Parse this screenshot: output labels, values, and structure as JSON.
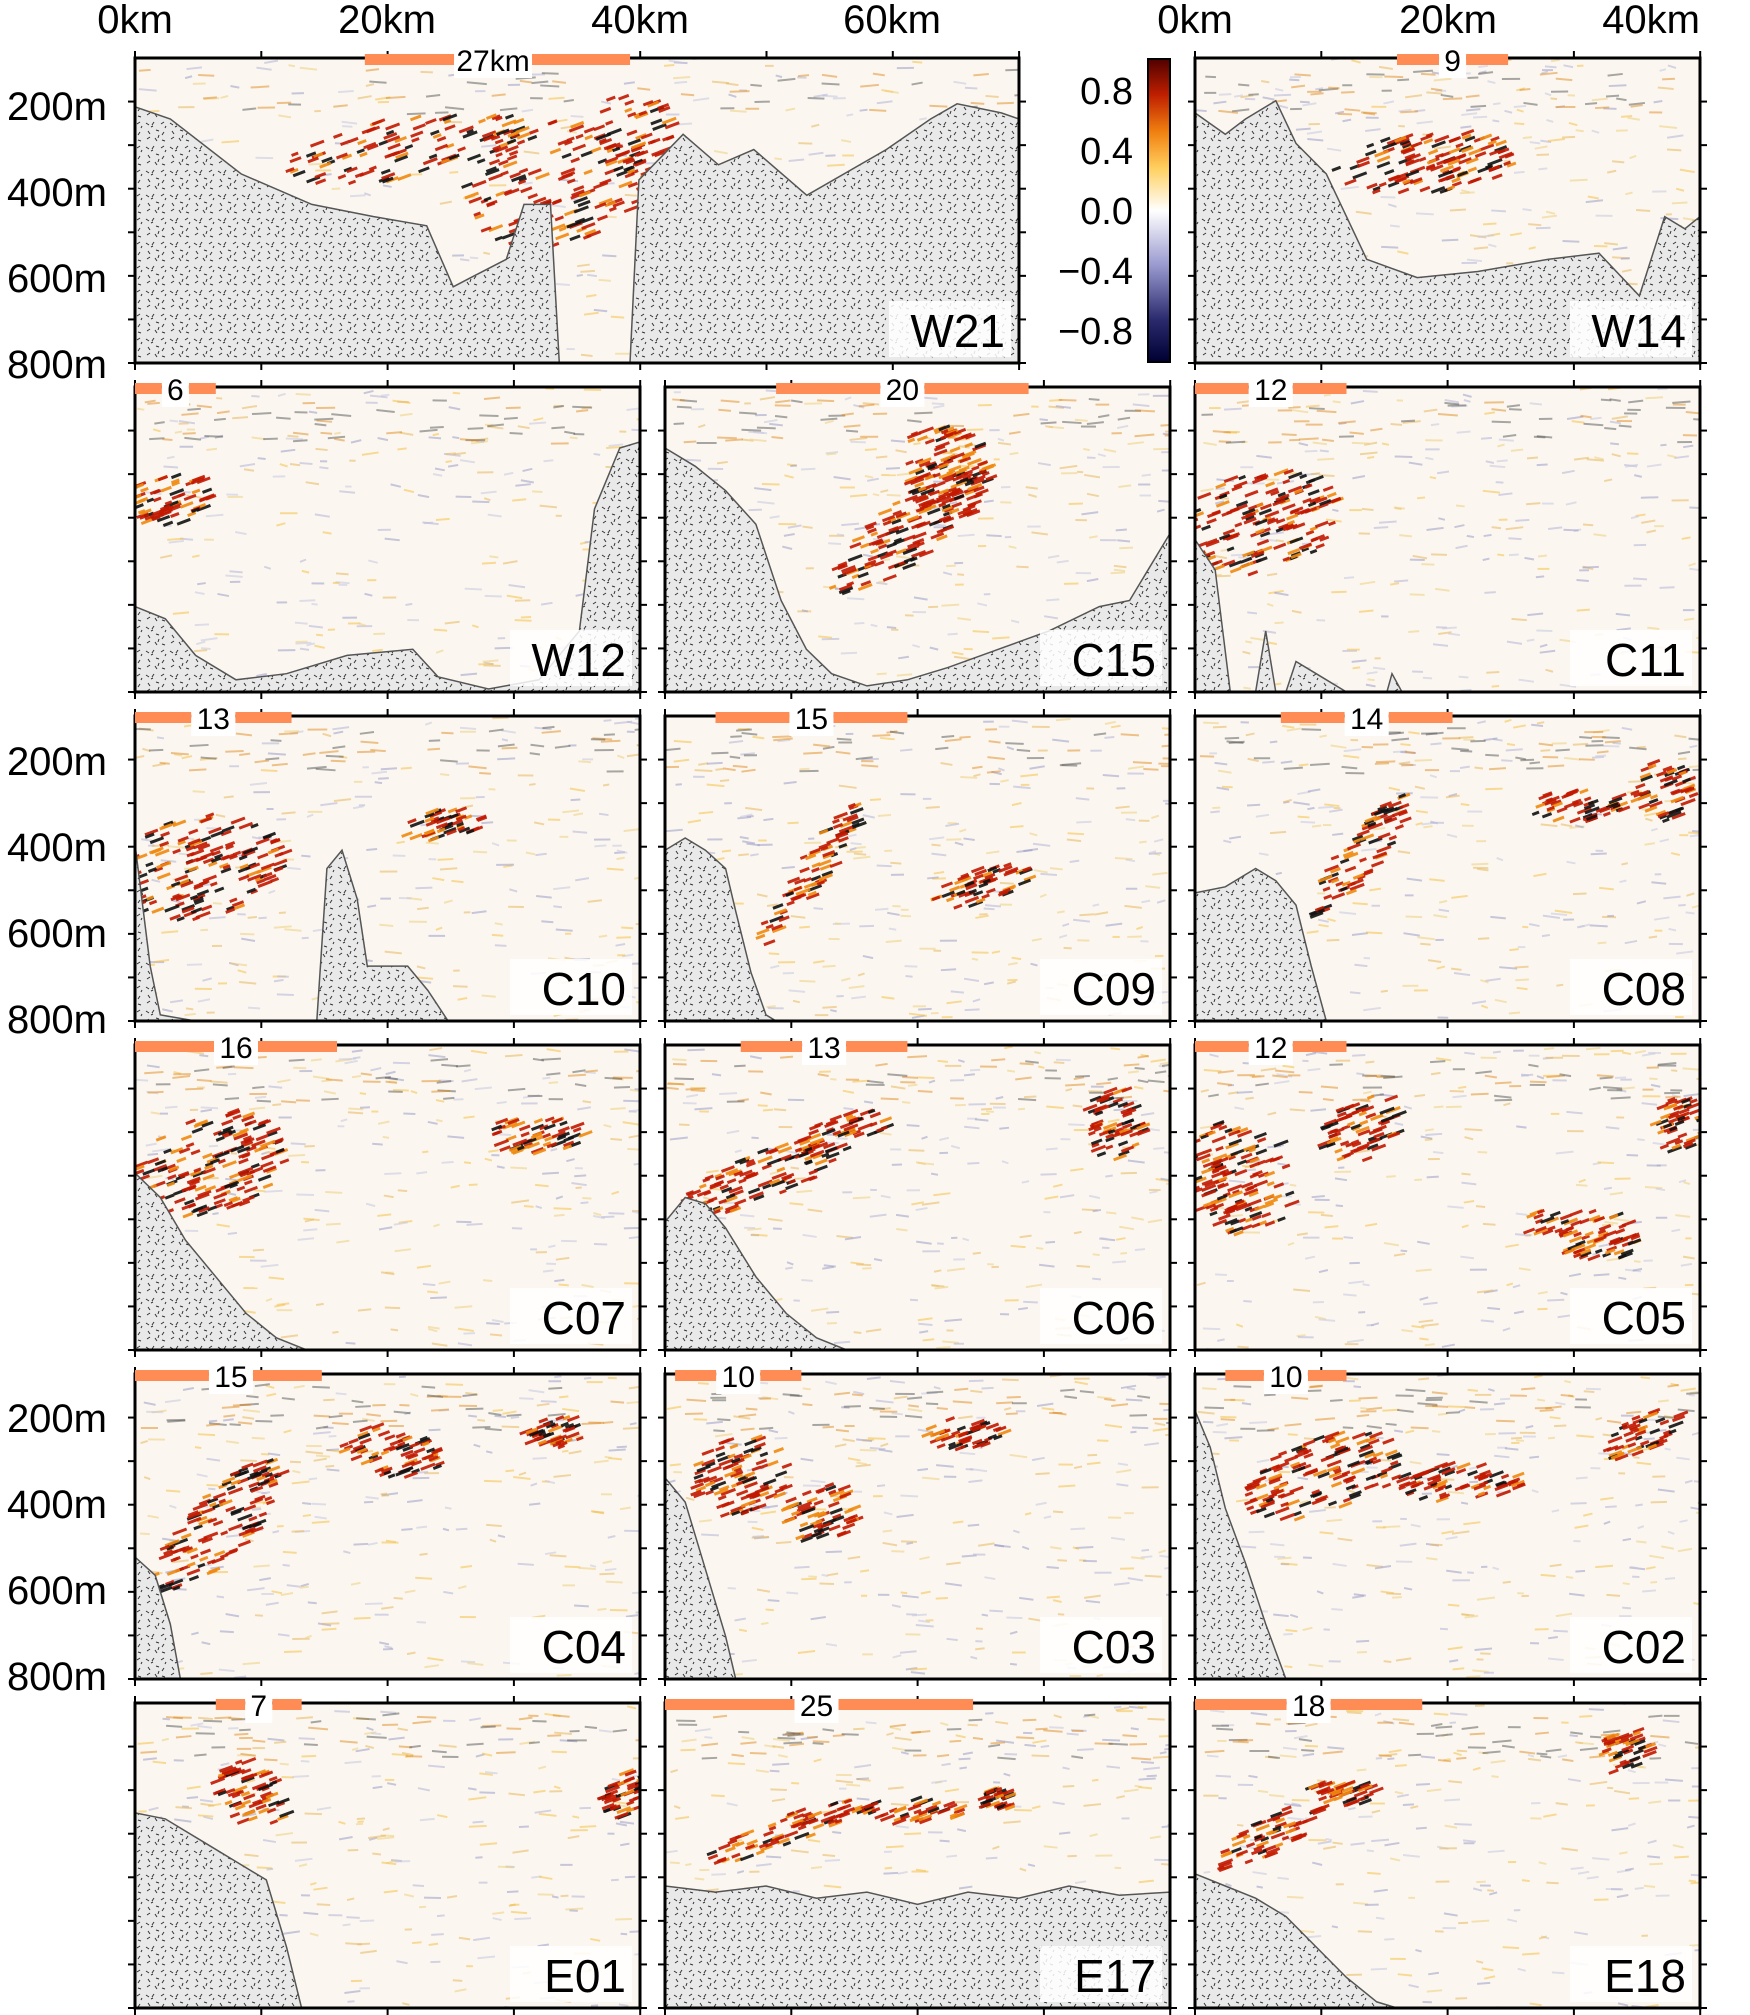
{
  "figure": {
    "top_axis_left": [
      "0km",
      "20km",
      "40km",
      "60km"
    ],
    "top_axis_right": [
      "0km",
      "20km",
      "40km"
    ],
    "depth_labels": [
      "200m",
      "400m",
      "600m",
      "800m"
    ],
    "colorbar": {
      "ticks": [
        "0.8",
        "0.4",
        "0.0",
        "−0.4",
        "−0.8"
      ],
      "colors": [
        "#000033",
        "#2a2a6e",
        "#9a9ad0",
        "#ffffff",
        "#ffd060",
        "#f08010",
        "#c02000",
        "#500000"
      ]
    },
    "scale_bar_color": "#ff8c55",
    "panels": [
      {
        "id": "W21",
        "scale_label": "27km"
      },
      {
        "id": "W14",
        "scale_label": "9"
      },
      {
        "id": "W12",
        "scale_label": "6"
      },
      {
        "id": "C15",
        "scale_label": "20"
      },
      {
        "id": "C11",
        "scale_label": "12"
      },
      {
        "id": "C10",
        "scale_label": "13"
      },
      {
        "id": "C09",
        "scale_label": "15"
      },
      {
        "id": "C08",
        "scale_label": "14"
      },
      {
        "id": "C07",
        "scale_label": "16"
      },
      {
        "id": "C06",
        "scale_label": "13"
      },
      {
        "id": "C05",
        "scale_label": "12"
      },
      {
        "id": "C04",
        "scale_label": "15"
      },
      {
        "id": "C03",
        "scale_label": "10"
      },
      {
        "id": "C02",
        "scale_label": "10"
      },
      {
        "id": "E01",
        "scale_label": "7"
      },
      {
        "id": "E17",
        "scale_label": "25"
      },
      {
        "id": "E18",
        "scale_label": "18"
      }
    ]
  }
}
